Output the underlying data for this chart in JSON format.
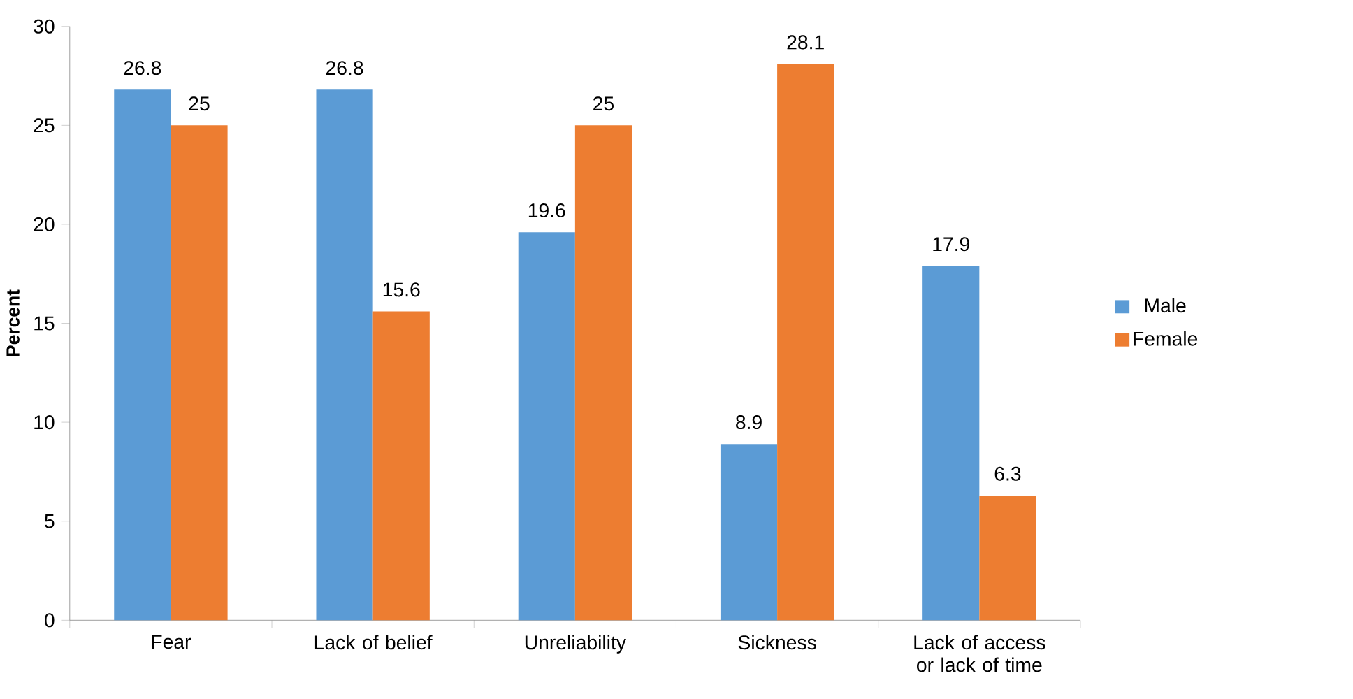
{
  "chart_data": {
    "type": "bar",
    "ylabel": "Percent",
    "categories": [
      "Fear",
      "Lack of belief",
      "Unreliability",
      "Sickness",
      "Lack of access or lack of time"
    ],
    "series": [
      {
        "name": "Male",
        "color": "#5b9bd5",
        "values": [
          26.8,
          26.8,
          19.6,
          8.9,
          17.9
        ]
      },
      {
        "name": "Female",
        "color": "#ed7d31",
        "values": [
          25,
          15.6,
          25,
          28.1,
          6.3
        ]
      }
    ],
    "ylim": [
      0,
      30
    ],
    "yticks": [
      0,
      5,
      10,
      15,
      20,
      25,
      30
    ],
    "data_labels": true,
    "legend": "right",
    "grid": false
  }
}
